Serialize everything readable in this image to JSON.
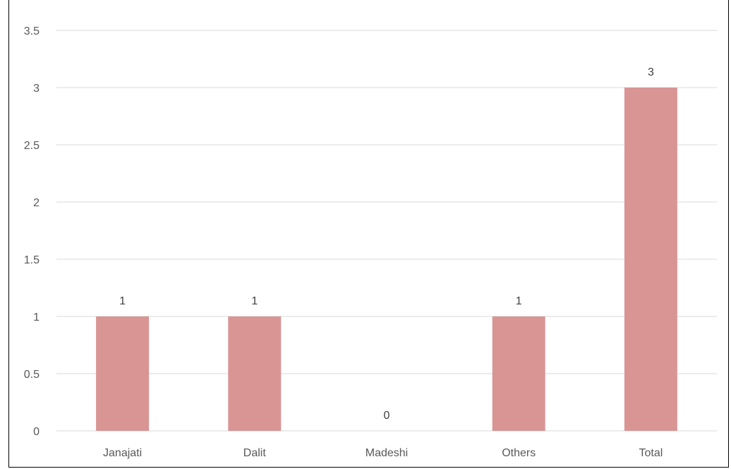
{
  "chart_data": {
    "type": "bar",
    "title": "",
    "categories": [
      "Janajati",
      "Dalit",
      "Madeshi",
      "Others",
      "Total"
    ],
    "values": [
      1,
      1,
      0,
      1,
      3
    ],
    "y_ticks": [
      "0",
      "0.5",
      "1",
      "1.5",
      "2",
      "2.5",
      "3",
      "3.5"
    ],
    "ylim": [
      0,
      3.5
    ],
    "grid": true,
    "bar_color": "#d99594",
    "grid_color": "#d9d9d9",
    "data_labels": [
      "1",
      "1",
      "0",
      "1",
      "3"
    ]
  }
}
